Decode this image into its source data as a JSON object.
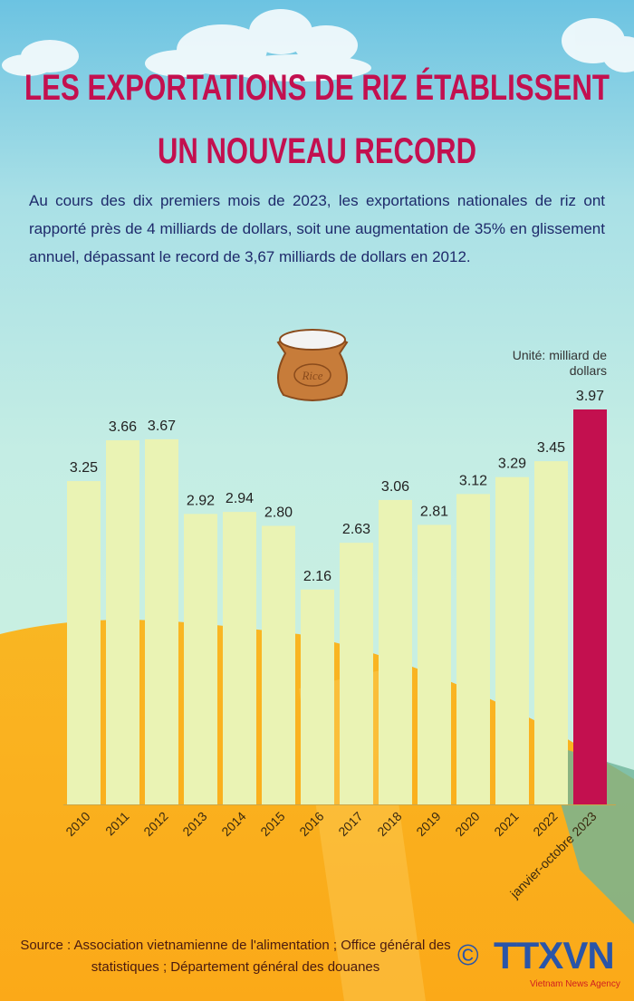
{
  "header": {
    "title_line1": "LES EXPORTATIONS DE RIZ ÉTABLISSENT",
    "title_line2": "UN NOUVEAU RECORD",
    "intro": "Au cours des dix premiers mois de 2023, les exportations nationales de riz ont rapporté près de 4 milliards de dollars, soit une augmentation de 35% en glissement annuel, dépassant le record de 3,67 milliards de dollars en 2012."
  },
  "colors": {
    "title": "#c3104f",
    "bar": "#eaf3b4",
    "highlight": "#c3104f",
    "text": "#1e2a6b"
  },
  "chart_data": {
    "type": "bar",
    "title": "",
    "unit_label": "Unité: milliard de dollars",
    "xlabel": "",
    "ylabel": "",
    "ylim": [
      0,
      3.97
    ],
    "categories": [
      "2010",
      "2011",
      "2012",
      "2013",
      "2014",
      "2015",
      "2016",
      "2017",
      "2018",
      "2019",
      "2020",
      "2021",
      "2022",
      "janvier-octobre 2023"
    ],
    "values": [
      3.25,
      3.66,
      3.67,
      2.92,
      2.94,
      2.8,
      2.16,
      2.63,
      3.06,
      2.81,
      3.12,
      3.29,
      3.45,
      3.97
    ],
    "value_labels": [
      "3.25",
      "3.66",
      "3.67",
      "2.92",
      "2.94",
      "2.80",
      "2.16",
      "2.63",
      "3.06",
      "2.81",
      "3.12",
      "3.29",
      "3.45",
      "3.97"
    ],
    "highlight_index": 13,
    "grid": false
  },
  "sack_label": "Rice",
  "footer": {
    "source": "Source : Association vietnamienne de l'alimentation ; Office général des statistiques ; Département général des douanes",
    "copyright": "©",
    "logo": "TTXVN",
    "logo_sub": "Vietnam News Agency"
  }
}
